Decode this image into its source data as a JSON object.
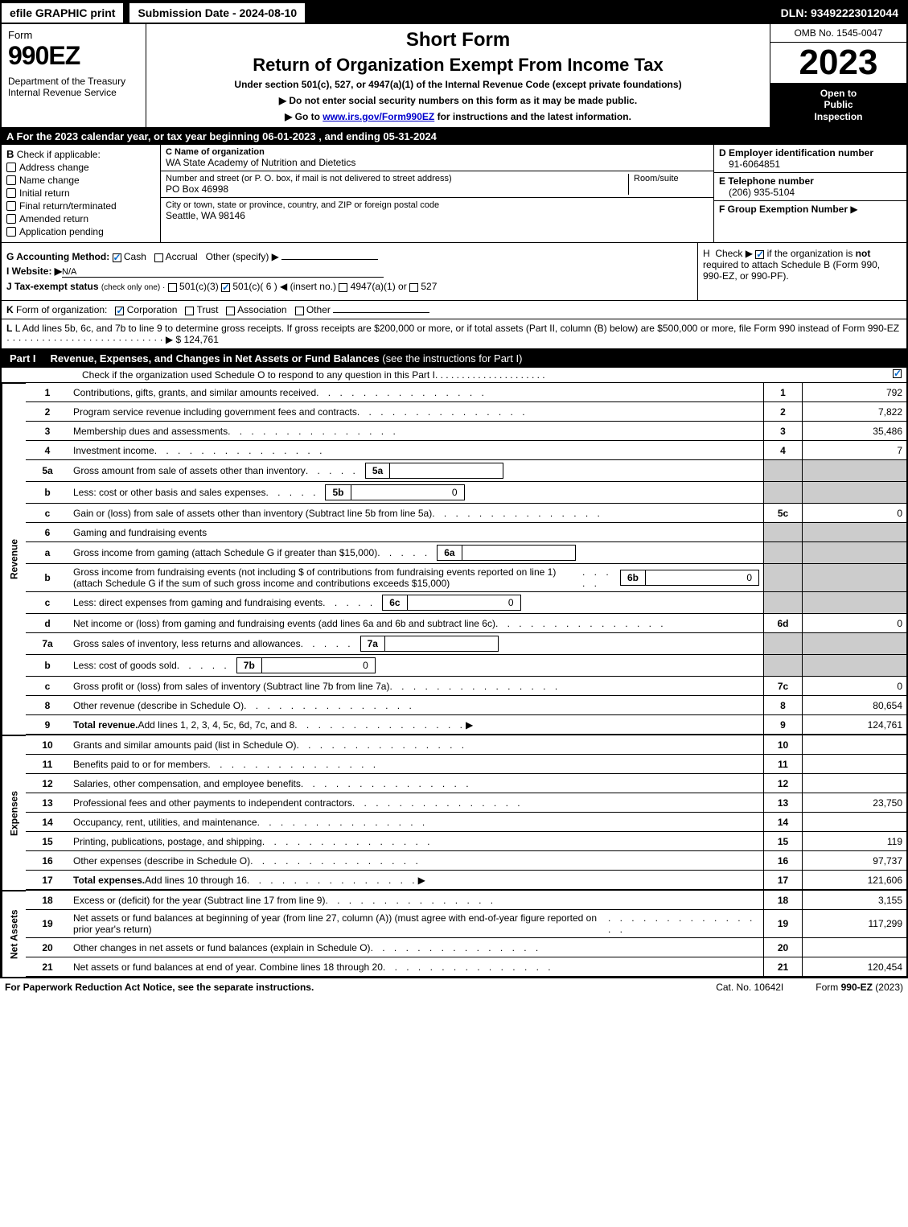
{
  "top": {
    "efile": "efile GRAPHIC print",
    "submission": "Submission Date - 2024-08-10",
    "dln": "DLN: 93492223012044"
  },
  "header": {
    "form_word": "Form",
    "form_num": "990EZ",
    "dept": "Department of the Treasury\nInternal Revenue Service",
    "short_form": "Short Form",
    "title": "Return of Organization Exempt From Income Tax",
    "subtitle": "Under section 501(c), 527, or 4947(a)(1) of the Internal Revenue Code (except private foundations)",
    "instr1": "▶ Do not enter social security numbers on this form as it may be made public.",
    "instr2_pre": "▶ Go to ",
    "instr2_link": "www.irs.gov/Form990EZ",
    "instr2_post": " for instructions and the latest information.",
    "omb": "OMB No. 1545-0047",
    "year": "2023",
    "inspection": "Open to\nPublic\nInspection"
  },
  "secA": "A  For the 2023 calendar year, or tax year beginning 06-01-2023 , and ending 05-31-2024",
  "secB": {
    "letter": "B",
    "title": "Check if applicable:",
    "items": [
      "Address change",
      "Name change",
      "Initial return",
      "Final return/terminated",
      "Amended return",
      "Application pending"
    ]
  },
  "secC": {
    "name_lbl": "C Name of organization",
    "name_val": "WA State Academy of Nutrition and Dietetics",
    "addr_lbl": "Number and street (or P. O. box, if mail is not delivered to street address)",
    "room_lbl": "Room/suite",
    "addr_val": "PO Box 46998",
    "city_lbl": "City or town, state or province, country, and ZIP or foreign postal code",
    "city_val": "Seattle, WA  98146"
  },
  "secD": {
    "d_lbl": "D Employer identification number",
    "d_val": "91-6064851",
    "e_lbl": "E Telephone number",
    "e_val": "(206) 935-5104",
    "f_lbl": "F Group Exemption Number",
    "f_arrow": "▶"
  },
  "secG": {
    "g_text": "G Accounting Method:",
    "cash": "Cash",
    "accrual": "Accrual",
    "other": "Other (specify) ▶",
    "i_text": "I Website: ▶",
    "i_val": "N/A",
    "j_text": "J Tax-exempt status",
    "j_sub": "(check only one) ·",
    "j_opts": "501(c)(3)    501(c)( 6 ) ◀ (insert no.)   4947(a)(1) or    527"
  },
  "secH": {
    "h_text": "H  Check ▶    if the organization is not required to attach Schedule B (Form 990, 990-EZ, or 990-PF)."
  },
  "secK": "K Form of organization:    Corporation   Trust   Association   Other",
  "secL": {
    "text": "L Add lines 5b, 6c, and 7b to line 9 to determine gross receipts. If gross receipts are $200,000 or more, or if total assets (Part II, column (B) below) are $500,000 or more, file Form 990 instead of Form 990-EZ",
    "dots": " · · · · · · · · · · · · · · · · · · · · · · · · · · · ▶ $",
    "val": " 124,761"
  },
  "part1": {
    "label": "Part I",
    "title": "Revenue, Expenses, and Changes in Net Assets or Fund Balances",
    "sub": "(see the instructions for Part I)",
    "check": "Check if the organization used Schedule O to respond to any question in this Part I"
  },
  "sides": {
    "revenue": "Revenue",
    "expenses": "Expenses",
    "netassets": "Net Assets"
  },
  "lines": [
    {
      "n": "1",
      "desc": "Contributions, gifts, grants, and similar amounts received",
      "rn": "1",
      "val": "792"
    },
    {
      "n": "2",
      "desc": "Program service revenue including government fees and contracts",
      "rn": "2",
      "val": "7,822"
    },
    {
      "n": "3",
      "desc": "Membership dues and assessments",
      "rn": "3",
      "val": "35,486"
    },
    {
      "n": "4",
      "desc": "Investment income",
      "rn": "4",
      "val": "7"
    },
    {
      "n": "5a",
      "desc": "Gross amount from sale of assets other than inventory",
      "box": "5a",
      "boxval": "",
      "shade": true
    },
    {
      "n": "b",
      "desc": "Less: cost or other basis and sales expenses",
      "box": "5b",
      "boxval": "0",
      "shade": true
    },
    {
      "n": "c",
      "desc": "Gain or (loss) from sale of assets other than inventory (Subtract line 5b from line 5a)",
      "rn": "5c",
      "val": "0"
    },
    {
      "n": "6",
      "desc": "Gaming and fundraising events",
      "shade": true
    },
    {
      "n": "a",
      "desc": "Gross income from gaming (attach Schedule G if greater than $15,000)",
      "box": "6a",
      "boxval": "",
      "shade": true
    },
    {
      "n": "b",
      "desc": "Gross income from fundraising events (not including $                           of contributions from fundraising events reported on line 1) (attach Schedule G if the sum of such gross income and contributions exceeds $15,000)",
      "box": "6b",
      "boxval": "0",
      "shade": true
    },
    {
      "n": "c",
      "desc": "Less: direct expenses from gaming and fundraising events",
      "box": "6c",
      "boxval": "0",
      "shade": true
    },
    {
      "n": "d",
      "desc": "Net income or (loss) from gaming and fundraising events (add lines 6a and 6b and subtract line 6c)",
      "rn": "6d",
      "val": "0"
    },
    {
      "n": "7a",
      "desc": "Gross sales of inventory, less returns and allowances",
      "box": "7a",
      "boxval": "",
      "shade": true
    },
    {
      "n": "b",
      "desc": "Less: cost of goods sold",
      "box": "7b",
      "boxval": "0",
      "shade": true
    },
    {
      "n": "c",
      "desc": "Gross profit or (loss) from sales of inventory (Subtract line 7b from line 7a)",
      "rn": "7c",
      "val": "0"
    },
    {
      "n": "8",
      "desc": "Other revenue (describe in Schedule O)",
      "rn": "8",
      "val": "80,654"
    },
    {
      "n": "9",
      "desc": "Total revenue. Add lines 1, 2, 3, 4, 5c, 6d, 7c, and 8",
      "rn": "9",
      "val": "124,761",
      "bold": true,
      "arrow": true
    }
  ],
  "lines_exp": [
    {
      "n": "10",
      "desc": "Grants and similar amounts paid (list in Schedule O)",
      "rn": "10",
      "val": ""
    },
    {
      "n": "11",
      "desc": "Benefits paid to or for members",
      "rn": "11",
      "val": ""
    },
    {
      "n": "12",
      "desc": "Salaries, other compensation, and employee benefits",
      "rn": "12",
      "val": ""
    },
    {
      "n": "13",
      "desc": "Professional fees and other payments to independent contractors",
      "rn": "13",
      "val": "23,750"
    },
    {
      "n": "14",
      "desc": "Occupancy, rent, utilities, and maintenance",
      "rn": "14",
      "val": ""
    },
    {
      "n": "15",
      "desc": "Printing, publications, postage, and shipping",
      "rn": "15",
      "val": "119"
    },
    {
      "n": "16",
      "desc": "Other expenses (describe in Schedule O)",
      "rn": "16",
      "val": "97,737"
    },
    {
      "n": "17",
      "desc": "Total expenses. Add lines 10 through 16",
      "rn": "17",
      "val": "121,606",
      "bold": true,
      "arrow": true
    }
  ],
  "lines_na": [
    {
      "n": "18",
      "desc": "Excess or (deficit) for the year (Subtract line 17 from line 9)",
      "rn": "18",
      "val": "3,155"
    },
    {
      "n": "19",
      "desc": "Net assets or fund balances at beginning of year (from line 27, column (A)) (must agree with end-of-year figure reported on prior year's return)",
      "rn": "19",
      "val": "117,299"
    },
    {
      "n": "20",
      "desc": "Other changes in net assets or fund balances (explain in Schedule O)",
      "rn": "20",
      "val": ""
    },
    {
      "n": "21",
      "desc": "Net assets or fund balances at end of year. Combine lines 18 through 20",
      "rn": "21",
      "val": "120,454"
    }
  ],
  "footer": {
    "left": "For Paperwork Reduction Act Notice, see the separate instructions.",
    "mid": "Cat. No. 10642I",
    "right_pre": "Form ",
    "right_b": "990-EZ",
    "right_post": " (2023)"
  }
}
